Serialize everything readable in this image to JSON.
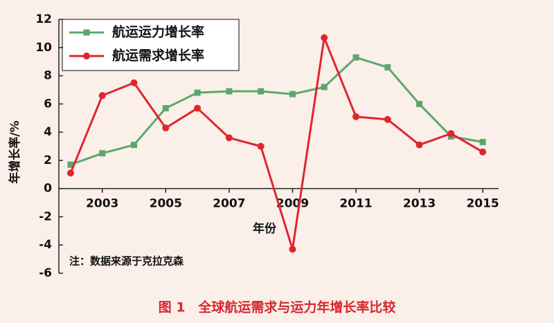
{
  "chart_data": {
    "type": "line",
    "x": [
      2002,
      2003,
      2004,
      2005,
      2006,
      2007,
      2008,
      2009,
      2010,
      2011,
      2012,
      2013,
      2014,
      2015
    ],
    "series": [
      {
        "name": "航运运力增长率",
        "color": "#5aa86a",
        "values": [
          1.7,
          2.5,
          3.1,
          5.7,
          6.8,
          6.9,
          6.9,
          6.7,
          7.2,
          9.3,
          8.6,
          6.0,
          3.7,
          3.3
        ]
      },
      {
        "name": "航运需求增长率",
        "color": "#e0252e",
        "values": [
          1.1,
          6.6,
          7.5,
          4.3,
          5.7,
          3.6,
          3.0,
          -4.3,
          10.7,
          5.1,
          4.9,
          3.1,
          3.9,
          2.6
        ]
      }
    ],
    "xlabel": "年份",
    "ylabel": "年增长率/%",
    "note": "注：数据来源于克拉克森",
    "caption": "图 1　全球航运需求与运力年增长率比较",
    "xlim": [
      2001.63,
      2015.5
    ],
    "xticks": [
      2003,
      2005,
      2007,
      2009,
      2011,
      2013,
      2015
    ],
    "ylim": [
      -6,
      12
    ],
    "yticks": [
      -6,
      -4,
      -2,
      0,
      2,
      4,
      6,
      8,
      10,
      12
    ],
    "legend": "upper-left",
    "grid": false
  }
}
